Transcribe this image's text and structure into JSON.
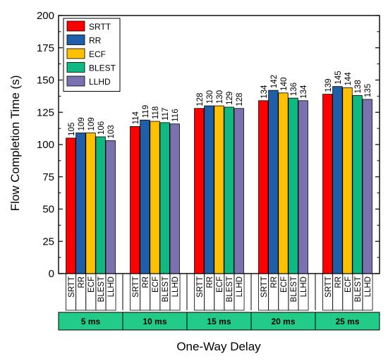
{
  "chart_data": {
    "type": "bar",
    "title": "",
    "xlabel": "One-Way Delay",
    "ylabel": "Flow Completion Time (s)",
    "ylim": [
      0,
      200
    ],
    "yticks": [
      0,
      25,
      50,
      75,
      100,
      125,
      150,
      175,
      200
    ],
    "grid": false,
    "legend_position": "top-left",
    "categories": [
      "5 ms",
      "10 ms",
      "15 ms",
      "20 ms",
      "25 ms"
    ],
    "series": [
      {
        "name": "SRTT",
        "color": "#ff0000",
        "values": [
          105,
          114,
          128,
          134,
          139
        ]
      },
      {
        "name": "RR",
        "color": "#1f5ea8",
        "values": [
          109,
          119,
          130,
          142,
          145
        ]
      },
      {
        "name": "ECF",
        "color": "#ffc000",
        "values": [
          109,
          118,
          130,
          140,
          144
        ]
      },
      {
        "name": "BLEST",
        "color": "#10b981",
        "values": [
          106,
          117,
          129,
          136,
          138
        ]
      },
      {
        "name": "LLHD",
        "color": "#7a72b0",
        "values": [
          103,
          116,
          128,
          134,
          135
        ]
      }
    ],
    "category_box_color": "#22cc88"
  }
}
